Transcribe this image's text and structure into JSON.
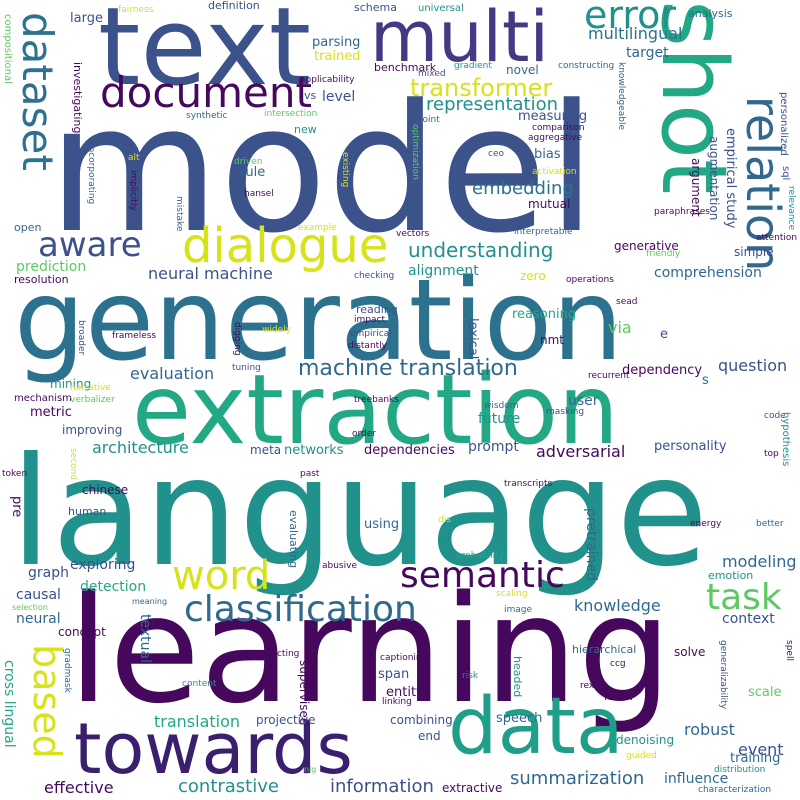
{
  "words": [
    {
      "id": "model",
      "text": "model"
    },
    {
      "id": "language",
      "text": "language"
    },
    {
      "id": "learning",
      "text": "learning"
    },
    {
      "id": "generation",
      "text": "generation"
    },
    {
      "id": "extraction",
      "text": "extraction"
    },
    {
      "id": "text",
      "text": "text"
    },
    {
      "id": "shot",
      "text": "shot"
    },
    {
      "id": "multi",
      "text": "multi"
    },
    {
      "id": "data",
      "text": "data"
    },
    {
      "id": "towards",
      "text": "towards"
    },
    {
      "id": "dialogue",
      "text": "dialogue"
    },
    {
      "id": "document",
      "text": "document"
    },
    {
      "id": "relation",
      "text": "relation"
    },
    {
      "id": "dataset",
      "text": "dataset"
    },
    {
      "id": "error",
      "text": "error"
    },
    {
      "id": "aware",
      "text": "aware"
    },
    {
      "id": "word",
      "text": "word"
    },
    {
      "id": "semantic",
      "text": "semantic"
    },
    {
      "id": "classification",
      "text": "classification"
    },
    {
      "id": "task",
      "text": "task"
    },
    {
      "id": "based",
      "text": "based"
    },
    {
      "id": "transformer",
      "text": "transformer"
    },
    {
      "id": "machine_translation",
      "text": "machine translation"
    },
    {
      "id": "understanding",
      "text": "understanding"
    },
    {
      "id": "representation",
      "text": "representation"
    },
    {
      "id": "embedding",
      "text": "embedding"
    },
    {
      "id": "multilingual",
      "text": "multilingual"
    },
    {
      "id": "neural_machine",
      "text": "neural machine"
    },
    {
      "id": "summarization",
      "text": "summarization"
    },
    {
      "id": "contrastive",
      "text": "contrastive"
    },
    {
      "id": "translation",
      "text": "translation"
    },
    {
      "id": "information",
      "text": "information"
    },
    {
      "id": "effective",
      "text": "effective"
    },
    {
      "id": "evaluation",
      "text": "evaluation"
    },
    {
      "id": "architecture",
      "text": "architecture"
    },
    {
      "id": "adversarial",
      "text": "adversarial"
    },
    {
      "id": "question",
      "text": "question"
    },
    {
      "id": "knowledge",
      "text": "knowledge"
    },
    {
      "id": "modeling",
      "text": "modeling"
    },
    {
      "id": "comprehension",
      "text": "comprehension"
    },
    {
      "id": "alignment",
      "text": "alignment"
    },
    {
      "id": "prediction",
      "text": "prediction"
    },
    {
      "id": "exploring",
      "text": "exploring"
    },
    {
      "id": "detection",
      "text": "detection"
    },
    {
      "id": "causal",
      "text": "causal"
    },
    {
      "id": "graph",
      "text": "graph"
    },
    {
      "id": "neural",
      "text": "neural"
    },
    {
      "id": "cross_lingual",
      "text": "cross lingual"
    },
    {
      "id": "textual",
      "text": "textual"
    },
    {
      "id": "robust",
      "text": "robust"
    },
    {
      "id": "influence",
      "text": "influence"
    },
    {
      "id": "event",
      "text": "event"
    },
    {
      "id": "context",
      "text": "context"
    },
    {
      "id": "training",
      "text": "training"
    },
    {
      "id": "scale",
      "text": "scale"
    },
    {
      "id": "prompt",
      "text": "prompt"
    },
    {
      "id": "pretrained",
      "text": "pretrained"
    },
    {
      "id": "networks",
      "text": "networks"
    },
    {
      "id": "dependencies",
      "text": "dependencies"
    },
    {
      "id": "personality",
      "text": "personality"
    },
    {
      "id": "future",
      "text": "future"
    },
    {
      "id": "user",
      "text": "user"
    },
    {
      "id": "dependency",
      "text": "dependency"
    },
    {
      "id": "reasoning",
      "text": "reasoning"
    },
    {
      "id": "via",
      "text": "via"
    },
    {
      "id": "lexical",
      "text": "lexical"
    },
    {
      "id": "empirical_study",
      "text": "empirical study"
    },
    {
      "id": "target",
      "text": "target"
    },
    {
      "id": "level",
      "text": "level"
    },
    {
      "id": "parsing",
      "text": "parsing"
    },
    {
      "id": "trained",
      "text": "trained"
    },
    {
      "id": "benchmark",
      "text": "benchmark"
    },
    {
      "id": "novel",
      "text": "novel"
    },
    {
      "id": "measuring",
      "text": "measuring"
    },
    {
      "id": "bias",
      "text": "bias"
    },
    {
      "id": "mutual",
      "text": "mutual"
    },
    {
      "id": "augmentation",
      "text": "augmentation"
    },
    {
      "id": "argument",
      "text": "argument"
    },
    {
      "id": "generative",
      "text": "generative"
    },
    {
      "id": "simple",
      "text": "simple"
    },
    {
      "id": "zero",
      "text": "zero"
    },
    {
      "id": "rule",
      "text": "rule"
    },
    {
      "id": "metric",
      "text": "metric"
    },
    {
      "id": "improving",
      "text": "improving"
    },
    {
      "id": "mining",
      "text": "mining"
    },
    {
      "id": "chinese",
      "text": "chinese"
    },
    {
      "id": "human",
      "text": "human"
    },
    {
      "id": "pre",
      "text": "pre"
    },
    {
      "id": "using",
      "text": "using"
    },
    {
      "id": "span",
      "text": "span"
    },
    {
      "id": "entity",
      "text": "entity"
    },
    {
      "id": "combining",
      "text": "combining"
    },
    {
      "id": "speech",
      "text": "speech"
    },
    {
      "id": "end",
      "text": "end"
    },
    {
      "id": "label",
      "text": "label"
    },
    {
      "id": "solve",
      "text": "solve"
    },
    {
      "id": "hierarchical",
      "text": "hierarchical"
    },
    {
      "id": "supervised",
      "text": "supervised"
    },
    {
      "id": "projective",
      "text": "projective"
    },
    {
      "id": "extractive",
      "text": "extractive"
    },
    {
      "id": "denoising",
      "text": "denoising"
    },
    {
      "id": "emotion",
      "text": "emotion"
    },
    {
      "id": "concept",
      "text": "concept"
    },
    {
      "id": "meta",
      "text": "meta"
    },
    {
      "id": "large",
      "text": "large"
    },
    {
      "id": "definition",
      "text": "definition"
    },
    {
      "id": "schema",
      "text": "schema"
    },
    {
      "id": "analysis",
      "text": "analysis"
    },
    {
      "id": "investigating",
      "text": "investigating"
    },
    {
      "id": "new",
      "text": "new"
    },
    {
      "id": "vs",
      "text": "vs"
    },
    {
      "id": "open",
      "text": "open"
    },
    {
      "id": "resolution",
      "text": "resolution"
    },
    {
      "id": "reading",
      "text": "reading"
    },
    {
      "id": "nmt",
      "text": "nmt"
    },
    {
      "id": "mechanism",
      "text": "mechanism"
    },
    {
      "id": "evaluating",
      "text": "evaluating"
    },
    {
      "id": "s",
      "text": "s"
    },
    {
      "id": "e",
      "text": "e"
    },
    {
      "id": "compositional",
      "text": "compositional"
    },
    {
      "id": "fairness",
      "text": "fairness"
    },
    {
      "id": "universal",
      "text": "universal"
    },
    {
      "id": "gradient",
      "text": "gradient"
    },
    {
      "id": "constructing",
      "text": "constructing"
    },
    {
      "id": "applicability",
      "text": "applicability"
    },
    {
      "id": "mixed",
      "text": "mixed"
    },
    {
      "id": "synthetic",
      "text": "synthetic"
    },
    {
      "id": "intersection",
      "text": "intersection"
    },
    {
      "id": "joint",
      "text": "joint"
    },
    {
      "id": "comparison",
      "text": "comparison"
    },
    {
      "id": "aggregative",
      "text": "aggregative"
    },
    {
      "id": "optimization",
      "text": "optimization"
    },
    {
      "id": "knowledgeable",
      "text": "knowledgeable"
    },
    {
      "id": "ceo",
      "text": "ceo"
    },
    {
      "id": "activation",
      "text": "activation"
    },
    {
      "id": "personalized",
      "text": "personalized"
    },
    {
      "id": "sql",
      "text": "sql"
    },
    {
      "id": "relevance",
      "text": "relevance"
    },
    {
      "id": "paraphrases",
      "text": "paraphrases"
    },
    {
      "id": "attention",
      "text": "attention"
    },
    {
      "id": "friendly",
      "text": "friendly"
    },
    {
      "id": "interpretable",
      "text": "interpretable"
    },
    {
      "id": "vectors",
      "text": "vectors"
    },
    {
      "id": "alt",
      "text": "alt"
    },
    {
      "id": "driven",
      "text": "driven"
    },
    {
      "id": "implicitly",
      "text": "implicitly"
    },
    {
      "id": "incorporating",
      "text": "incorporating"
    },
    {
      "id": "existing",
      "text": "existing"
    },
    {
      "id": "hansel",
      "text": "hansel"
    },
    {
      "id": "mistake",
      "text": "mistake"
    },
    {
      "id": "example",
      "text": "example"
    },
    {
      "id": "checking",
      "text": "checking"
    },
    {
      "id": "operations",
      "text": "operations"
    },
    {
      "id": "sead",
      "text": "sead"
    },
    {
      "id": "impact",
      "text": "impact"
    },
    {
      "id": "empirical",
      "text": "empirical"
    },
    {
      "id": "distantly",
      "text": "distantly"
    },
    {
      "id": "widely",
      "text": "widely"
    },
    {
      "id": "frameless",
      "text": "frameless"
    },
    {
      "id": "broader",
      "text": "broader"
    },
    {
      "id": "digging",
      "text": "digging"
    },
    {
      "id": "tuning",
      "text": "tuning"
    },
    {
      "id": "recurrent",
      "text": "recurrent"
    },
    {
      "id": "narrative",
      "text": "narrative"
    },
    {
      "id": "verbalizer",
      "text": "verbalizer"
    },
    {
      "id": "treebanks",
      "text": "treebanks"
    },
    {
      "id": "wisdom",
      "text": "wisdom"
    },
    {
      "id": "masking",
      "text": "masking"
    },
    {
      "id": "order",
      "text": "order"
    },
    {
      "id": "code",
      "text": "code"
    },
    {
      "id": "hypothesis",
      "text": "hypothesis"
    },
    {
      "id": "top",
      "text": "top"
    },
    {
      "id": "token",
      "text": "token"
    },
    {
      "id": "second",
      "text": "second"
    },
    {
      "id": "past",
      "text": "past"
    },
    {
      "id": "transcripts",
      "text": "transcripts"
    },
    {
      "id": "energy",
      "text": "energy"
    },
    {
      "id": "better",
      "text": "better"
    },
    {
      "id": "dis",
      "text": "dis"
    },
    {
      "id": "probability",
      "text": "probability"
    },
    {
      "id": "abusive",
      "text": "abusive"
    },
    {
      "id": "scaling",
      "text": "scaling"
    },
    {
      "id": "selection",
      "text": "selection"
    },
    {
      "id": "meaning",
      "text": "meaning"
    },
    {
      "id": "image",
      "text": "image"
    },
    {
      "id": "ccg",
      "text": "ccg"
    },
    {
      "id": "captioning",
      "text": "captioning"
    },
    {
      "id": "gradmask",
      "text": "gradmask"
    },
    {
      "id": "predicting",
      "text": "predicting"
    },
    {
      "id": "content",
      "text": "content"
    },
    {
      "id": "risk",
      "text": "risk"
    },
    {
      "id": "headed",
      "text": "headed"
    },
    {
      "id": "linking",
      "text": "linking"
    },
    {
      "id": "rex",
      "text": "rex"
    },
    {
      "id": "generalizability",
      "text": "generalizability"
    },
    {
      "id": "spell",
      "text": "spell"
    },
    {
      "id": "guided",
      "text": "guided"
    },
    {
      "id": "distribution",
      "text": "distribution"
    },
    {
      "id": "characterization",
      "text": "characterization"
    },
    {
      "id": "nlg",
      "text": "nlg"
    }
  ],
  "palette": {
    "dark_purple": "#46085c",
    "indigo": "#3b528b",
    "blue": "#31688e",
    "teal": "#21918c",
    "green": "#22a884",
    "light_green": "#5ec962",
    "yellow": "#d8e219"
  }
}
